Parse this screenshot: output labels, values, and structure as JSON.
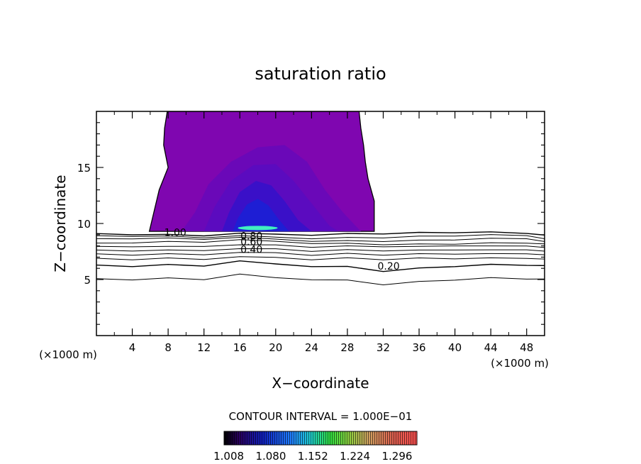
{
  "chart_data": {
    "type": "contour",
    "title": "saturation ratio",
    "xlabel": "X−coordinate",
    "ylabel": "Z−coordinate",
    "x_unit_label_left": "(×1000 m)",
    "x_unit_label_right": "(×1000 m)",
    "xlim": [
      0,
      50
    ],
    "ylim": [
      0,
      20
    ],
    "x_ticks": [
      4,
      8,
      12,
      16,
      20,
      24,
      28,
      32,
      36,
      40,
      44,
      48
    ],
    "y_ticks": [
      5,
      10,
      15
    ],
    "contour_interval_text": "CONTOUR INTERVAL = 1.000E−01",
    "contour_labels": [
      {
        "text": "1.00",
        "x": 8.8,
        "z": 9.2
      },
      {
        "text": "0.80",
        "x": 17.3,
        "z": 8.9
      },
      {
        "text": "0.60",
        "x": 17.3,
        "z": 8.4
      },
      {
        "text": "0.40",
        "x": 17.3,
        "z": 7.7
      },
      {
        "text": "0.20",
        "x": 32.6,
        "z": 6.2
      }
    ],
    "colorbar": {
      "tick_labels": [
        "1.008",
        "1.080",
        "1.152",
        "1.224",
        "1.296"
      ],
      "range": [
        1.0,
        1.33
      ]
    },
    "filled_region": {
      "description_values": "supersaturated region (ratio > 1.00) roughly x 6–31, z 9.3–20",
      "max_near": {
        "x": 18,
        "z": 9.6
      }
    },
    "sub_saturation_levels": [
      0.1,
      0.2,
      0.3,
      0.4,
      0.5,
      0.6,
      0.7,
      0.8,
      0.9,
      1.0
    ],
    "colors": {
      "fill_outer": "#7f06b0",
      "fill_mid": "#5b0bbf",
      "fill_inner": "#3a10c8",
      "fill_core": "#1e1ed4",
      "core_highlight": "#40f0c0"
    }
  }
}
